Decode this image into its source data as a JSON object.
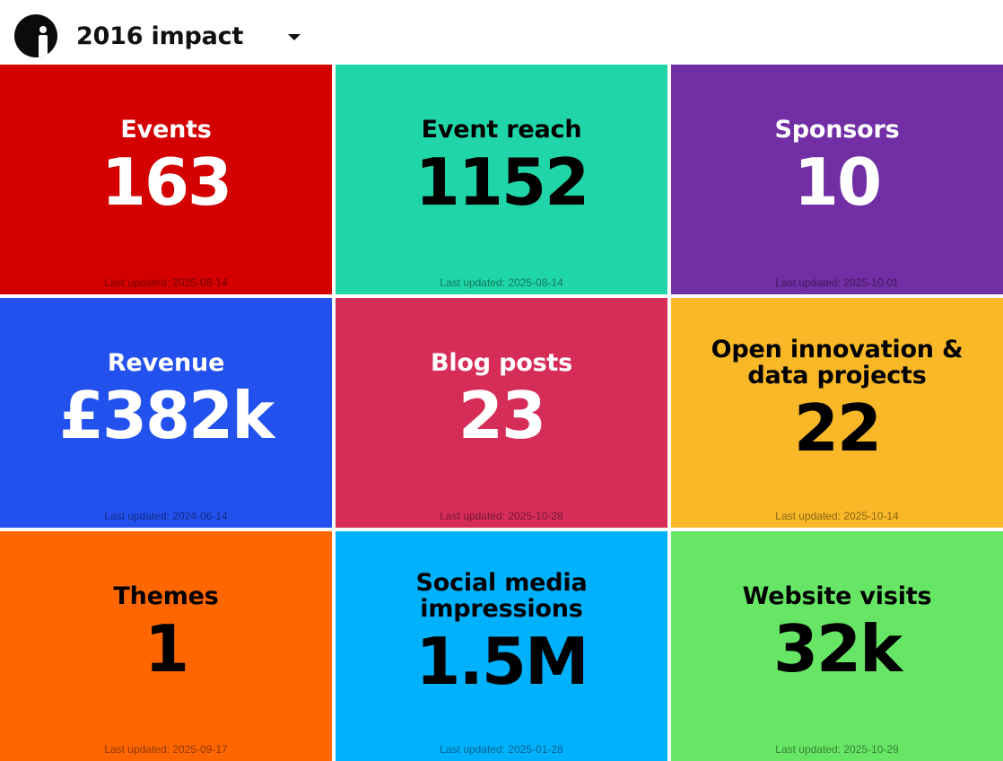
{
  "header": {
    "title": "2016 impact",
    "logo_icon": "info-person-logo-icon",
    "dropdown_icon": "caret-down-icon"
  },
  "tiles": [
    {
      "label": "Events",
      "value": "163",
      "updated": "Last updated: 2025-08-14",
      "bg": "#d40000",
      "text": "#ffffff"
    },
    {
      "label": "Event reach",
      "value": "1152",
      "updated": "Last updated: 2025-08-14",
      "bg": "#20d6a8",
      "text": "#000000"
    },
    {
      "label": "Sponsors",
      "value": "10",
      "updated": "Last updated: 2025-10-01",
      "bg": "#722ea5",
      "text": "#ffffff"
    },
    {
      "label": "Revenue",
      "value": "£382k",
      "updated": "Last updated: 2024-06-14",
      "bg": "#2251ee",
      "text": "#ffffff"
    },
    {
      "label": "Blog posts",
      "value": "23",
      "updated": "Last updated: 2025-10-28",
      "bg": "#d52d58",
      "text": "#ffffff"
    },
    {
      "label": "Open innovation & data projects",
      "value": "22",
      "updated": "Last updated: 2025-10-14",
      "bg": "#f8b827",
      "text": "#000000"
    },
    {
      "label": "Themes",
      "value": "1",
      "updated": "Last updated: 2025-09-17",
      "bg": "#ff6600",
      "text": "#000000"
    },
    {
      "label": "Social media impressions",
      "value": "1.5M",
      "updated": "Last updated: 2025-01-28",
      "bg": "#00b2fe",
      "text": "#000000"
    },
    {
      "label": "Website visits",
      "value": "32k",
      "updated": "Last updated: 2025-10-29",
      "bg": "#67e666",
      "text": "#000000"
    }
  ]
}
